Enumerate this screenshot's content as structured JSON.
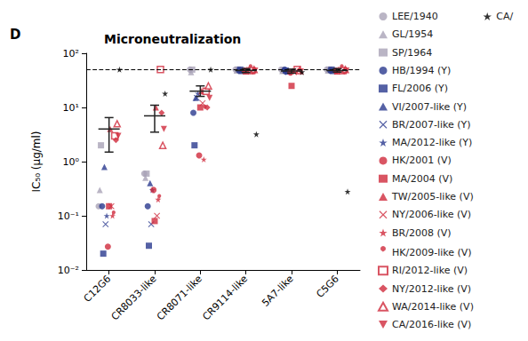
{
  "chart_data": {
    "type": "scatter",
    "panel_label": "D",
    "title": "Microneutralization",
    "y_label": "IC₅₀ (μg/ml)",
    "log": "y",
    "legend": "right",
    "categories": [
      "C12G6",
      "CR8033-like",
      "CR8071-like",
      "CR9114-like",
      "5A7-like",
      "C5G6"
    ],
    "ylim": [
      0.01,
      100
    ],
    "yticks": [
      {
        "value": 0.01,
        "label": "10⁻²"
      },
      {
        "value": 0.1,
        "label": "10⁻¹"
      },
      {
        "value": 1,
        "label": "10⁰"
      },
      {
        "value": 10,
        "label": "10¹"
      },
      {
        "value": 100,
        "label": "10²"
      }
    ],
    "threshold": 50,
    "mean": [
      4,
      7,
      20,
      48,
      47,
      48
    ],
    "error_low": [
      1.5,
      3.5,
      16,
      44,
      43,
      45
    ],
    "error_high": [
      6.5,
      11,
      25,
      52,
      51,
      52
    ],
    "series": [
      {
        "name": "LEE/1940",
        "color": "#a9a2b6",
        "marker": "circle",
        "values": [
          0.15,
          0.6,
          50,
          50,
          50,
          50
        ]
      },
      {
        "name": "GL/1954",
        "color": "#a9a2b6",
        "marker": "triangle",
        "values": [
          0.3,
          0.5,
          45,
          48,
          47,
          48
        ]
      },
      {
        "name": "SP/1964",
        "color": "#a9a2b6",
        "marker": "square",
        "values": [
          2,
          0.6,
          50,
          50,
          48,
          50
        ]
      },
      {
        "name": "HB/1994 (Y)",
        "color": "#2b3a8f",
        "marker": "circle",
        "values": [
          0.15,
          0.15,
          8,
          48,
          50,
          48
        ]
      },
      {
        "name": "FL/2006 (Y)",
        "color": "#2b3a8f",
        "marker": "square",
        "values": [
          0.02,
          0.028,
          2,
          50,
          48,
          50
        ]
      },
      {
        "name": "VI/2007-like (Y)",
        "color": "#2b3a8f",
        "marker": "triangle",
        "values": [
          0.8,
          0.4,
          15,
          47,
          46,
          47
        ]
      },
      {
        "name": "BR/2007-like (Y)",
        "color": "#2b3a8f",
        "marker": "x",
        "values": [
          0.07,
          0.07,
          15,
          48,
          45,
          48
        ]
      },
      {
        "name": "MA/2012-like (Y)",
        "color": "#2b3a8f",
        "marker": "star",
        "values": [
          0.1,
          0.3,
          18,
          50,
          47,
          50
        ]
      },
      {
        "name": "HK/2001 (V)",
        "color": "#d02b3c",
        "marker": "circle",
        "values": [
          0.027,
          0.3,
          1.3,
          48,
          44,
          48
        ]
      },
      {
        "name": "MA/2004 (V)",
        "color": "#d02b3c",
        "marker": "square",
        "values": [
          0.15,
          0.08,
          10,
          46,
          25,
          46
        ]
      },
      {
        "name": "TW/2005-like (V)",
        "color": "#d02b3c",
        "marker": "triangle",
        "values": [
          4,
          10,
          20,
          50,
          48,
          50
        ]
      },
      {
        "name": "NY/2006-like (V)",
        "color": "#d02b3c",
        "marker": "x",
        "values": [
          0.15,
          0.1,
          12,
          47,
          45,
          47
        ]
      },
      {
        "name": "BR/2008 (V)",
        "color": "#d02b3c",
        "marker": "star",
        "values": [
          0.1,
          0.2,
          1.1,
          48,
          46,
          48
        ]
      },
      {
        "name": "HK/2009-like (V)",
        "color": "#d02b3c",
        "marker": "venus",
        "values": [
          0.1,
          0.2,
          9,
          50,
          44,
          50
        ]
      },
      {
        "name": "RI/2012-like (V)",
        "color": "#d02b3c",
        "marker": "open-square",
        "values": [
          3,
          50,
          20,
          48,
          50,
          48
        ]
      },
      {
        "name": "NY/2012-like (V)",
        "color": "#d02b3c",
        "marker": "mars",
        "values": [
          2.5,
          8,
          10,
          46,
          47,
          46
        ]
      },
      {
        "name": "WA/2014-like (V)",
        "color": "#d02b3c",
        "marker": "open-triangle",
        "values": [
          5,
          2,
          25,
          50,
          48,
          50
        ]
      },
      {
        "name": "CA/2016-like (V)",
        "color": "#d02b3c",
        "marker": "down-triangle",
        "values": [
          3,
          4,
          15,
          48,
          46,
          48
        ]
      },
      {
        "name": "CA/",
        "color": "#000000",
        "marker": "star",
        "values": [
          50,
          18,
          50,
          3.2,
          45,
          0.28
        ]
      }
    ]
  }
}
